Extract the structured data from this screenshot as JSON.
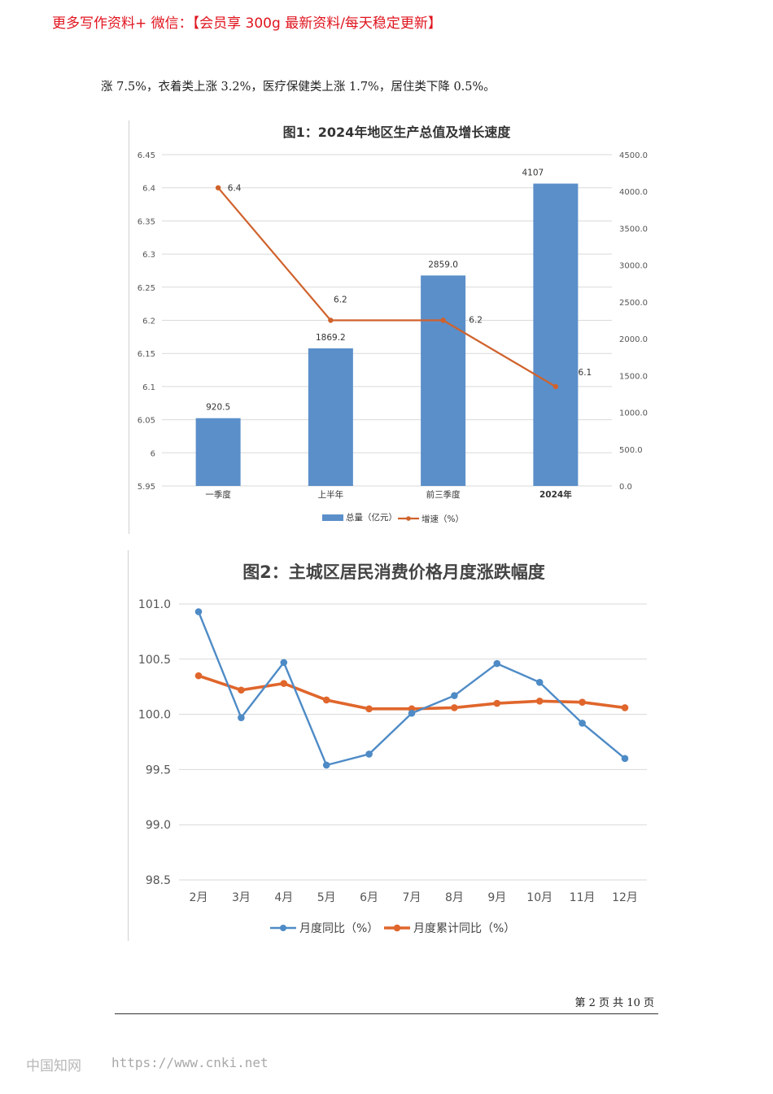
{
  "promo": "更多写作资料+ 微信：【会员享 300g 最新资料/每天稳定更新】",
  "body_text": "涨 7.5%，衣着类上涨 3.2%，医疗保健类上涨 1.7%，居住类下降 0.5%。",
  "chart_data": [
    {
      "type": "bar",
      "title": "图1：2024年地区生产总值及增长速度",
      "categories": [
        "一季度",
        "上半年",
        "前三季度",
        "2024年"
      ],
      "series": [
        {
          "name": "总量（亿元）",
          "type": "bar",
          "axis": "right",
          "values": [
            920.5,
            1869.2,
            2859.0,
            4107
          ],
          "labels": [
            "920.5",
            "1869.2",
            "2859.0",
            "4107"
          ]
        },
        {
          "name": "增速（%）",
          "type": "line",
          "axis": "left",
          "values": [
            6.4,
            6.2,
            6.2,
            6.1
          ],
          "labels": [
            "6.4",
            "6.2",
            "6.2",
            "6.1"
          ]
        }
      ],
      "left_axis": {
        "ylim": [
          5.95,
          6.45
        ],
        "ticks": [
          "6.45",
          "6.4",
          "6.35",
          "6.3",
          "6.25",
          "6.2",
          "6.15",
          "6.1",
          "6.05",
          "6",
          "5.95"
        ]
      },
      "right_axis": {
        "ylim": [
          0,
          4500
        ],
        "ticks": [
          "4500.0",
          "4000.0",
          "3500.0",
          "3000.0",
          "2500.0",
          "2000.0",
          "1500.0",
          "1000.0",
          "500.0",
          "0.0"
        ]
      },
      "grid": true,
      "legend": "bottom",
      "colors": {
        "bar": "#5b8fc9",
        "line": "#d0622c"
      }
    },
    {
      "type": "line",
      "title": "图2：主城区居民消费价格月度涨跌幅度",
      "categories": [
        "2月",
        "3月",
        "4月",
        "5月",
        "6月",
        "7月",
        "8月",
        "9月",
        "10月",
        "11月",
        "12月"
      ],
      "series": [
        {
          "name": "月度同比（%）",
          "values": [
            100.93,
            99.97,
            100.47,
            99.54,
            99.64,
            100.01,
            100.17,
            100.46,
            100.29,
            99.92,
            99.6
          ]
        },
        {
          "name": "月度累计同比（%）",
          "values": [
            100.35,
            100.22,
            100.28,
            100.13,
            100.05,
            100.05,
            100.06,
            100.1,
            100.12,
            100.11,
            100.06
          ]
        }
      ],
      "ylim": [
        98.5,
        101.0
      ],
      "yticks": [
        "101.0",
        "100.5",
        "100.0",
        "99.5",
        "99.0",
        "98.5"
      ],
      "grid": true,
      "legend": "bottom",
      "colors": {
        "series1": "#4e8bc6",
        "series2": "#e0662c"
      }
    }
  ],
  "page_number": "第 2 页 共 10 页",
  "watermark": {
    "site_name": "中国知网",
    "url": "https://www.cnki.net"
  }
}
